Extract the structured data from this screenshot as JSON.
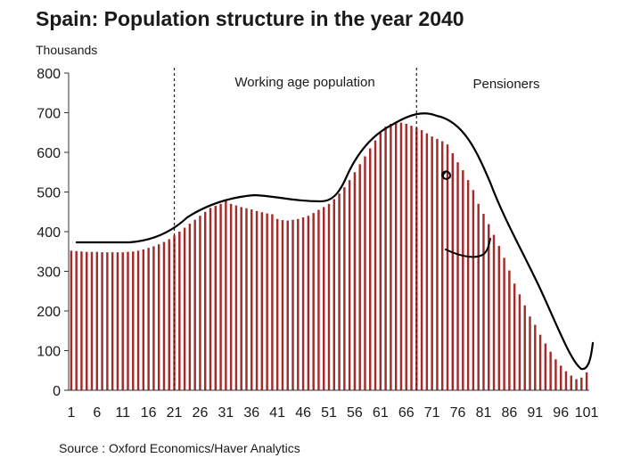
{
  "chart_data": {
    "type": "bar",
    "title": "Spain: Population structure in the year 2040",
    "ylabel": "Thousands",
    "source": "Source : Oxford Economics/Haver Analytics",
    "ylim": [
      0,
      800
    ],
    "yticks": [
      0,
      100,
      200,
      300,
      400,
      500,
      600,
      700,
      800
    ],
    "xtick_labels": [
      "1",
      "6",
      "11",
      "16",
      "21",
      "26",
      "31",
      "36",
      "41",
      "46",
      "51",
      "56",
      "61",
      "66",
      "71",
      "76",
      "81",
      "86",
      "91",
      "96",
      "101"
    ],
    "bar_color": "#a52a2a",
    "grid": false,
    "regions": [
      {
        "label": "Working age population"
      },
      {
        "label": "Pensioners"
      }
    ],
    "x": [
      1,
      2,
      3,
      4,
      5,
      6,
      7,
      8,
      9,
      10,
      11,
      12,
      13,
      14,
      15,
      16,
      17,
      18,
      19,
      20,
      21,
      22,
      23,
      24,
      25,
      26,
      27,
      28,
      29,
      30,
      31,
      32,
      33,
      34,
      35,
      36,
      37,
      38,
      39,
      40,
      41,
      42,
      43,
      44,
      45,
      46,
      47,
      48,
      49,
      50,
      51,
      52,
      53,
      54,
      55,
      56,
      57,
      58,
      59,
      60,
      61,
      62,
      63,
      64,
      65,
      66,
      67,
      68,
      69,
      70,
      71,
      72,
      73,
      74,
      75,
      76,
      77,
      78,
      79,
      80,
      81,
      82,
      83,
      84,
      85,
      86,
      87,
      88,
      89,
      90,
      91,
      92,
      93,
      94,
      95,
      96,
      97,
      98,
      99,
      100,
      101
    ],
    "values": [
      352,
      351,
      350,
      349,
      349,
      349,
      348,
      348,
      348,
      348,
      348,
      349,
      350,
      352,
      355,
      359,
      363,
      368,
      374,
      381,
      390,
      400,
      410,
      420,
      430,
      440,
      450,
      460,
      465,
      470,
      478,
      470,
      466,
      462,
      459,
      456,
      452,
      449,
      446,
      444,
      432,
      429,
      428,
      430,
      432,
      436,
      440,
      447,
      455,
      462,
      470,
      482,
      496,
      512,
      530,
      550,
      570,
      590,
      610,
      630,
      650,
      665,
      672,
      677,
      675,
      672,
      667,
      662,
      656,
      648,
      640,
      634,
      628,
      620,
      598,
      575,
      555,
      530,
      505,
      470,
      445,
      419,
      392,
      364,
      334,
      302,
      269,
      242,
      214,
      186,
      165,
      140,
      118,
      97,
      78,
      62,
      48,
      37,
      28,
      32,
      45
    ]
  }
}
